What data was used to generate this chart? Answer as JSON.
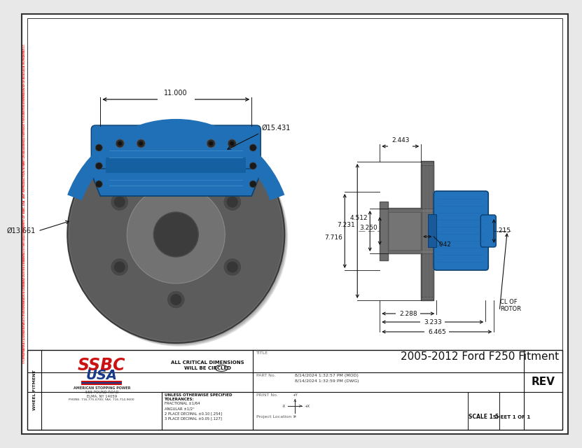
{
  "title": "2005-2012 Ford F250 Fitment",
  "bg_color": "#e8e8e8",
  "paper_color": "#ffffff",
  "border_color": "#333333",
  "caliper_color": "#2277bb",
  "rotor_color": "#585858",
  "rotor_hat_color": "#787878",
  "dim_color": "#111111",
  "ssbc_red": "#cc1111",
  "ssbc_blue": "#1a3a8a",
  "company_tagline": "AMERICAN STOPPING POWER",
  "company_address": "555 POUND ROAD",
  "company_city": "ELMA, NY 14059",
  "company_phone": "PHONE: 716-775-6700; FAX: 716-714-9600",
  "title_label": "TITLE",
  "part_no_label": "PART No.",
  "print_no_label": "PRINT No.",
  "date_mod": "8/14/2024 1:32:57 PM (MOD)",
  "date_dwg": "8/14/2024 1:32:59 PM (DWG)",
  "rev_label": "REV",
  "critical_dims_line1": "ALL CRITICAL DIMENSIONS",
  "critical_dims_line2": "WILL BE CIRCLED",
  "tolerances_header": "UNLESS OTHERWISE SPECIFIED\nTOLERANCES:",
  "tol_frac": "FRACTIONAL ±1/64",
  "tol_ang": "ANGULAR ±1/2°",
  "tol_2dec": "2 PLACE DECIMAL ±0.10 [.254]",
  "tol_3dec": "3 PLACE DECIMAL ±0.05 [.127]",
  "project_location": "Project Location >",
  "scale": "SCALE 1:5",
  "sheet": "SHEET 1 OF 1",
  "wheel_fitment": "WHEEL FITMENT",
  "dim_11": "11.000",
  "dim_phi_15": "Ø15.431",
  "dim_phi_13": "Ø13.661",
  "dim_6465": "6.465",
  "dim_3233": "3.233",
  "dim_2288": "2.288",
  "dim_cl_rotor": "CL OF\nROTOR",
  "dim_215": ".215",
  "dim_7716": "7.716",
  "dim_7231": "7.231",
  "dim_042": ".042",
  "dim_4512": "4.512",
  "dim_3250": "3.250",
  "dim_2443": "2.443",
  "proprietary_text": "PROPRIETARY & CONFIDENTIAL: THE INFORMATION CONTAINED IN THIS DRAWING IS THE SOLE PROPERTY OF SSBC-USA. ANY REPRODUCTION IN PART OR AS A WHOLE WITHOUT THE WRITTEN PERMISSION OF SSBC-USA IS PROHIBITED."
}
